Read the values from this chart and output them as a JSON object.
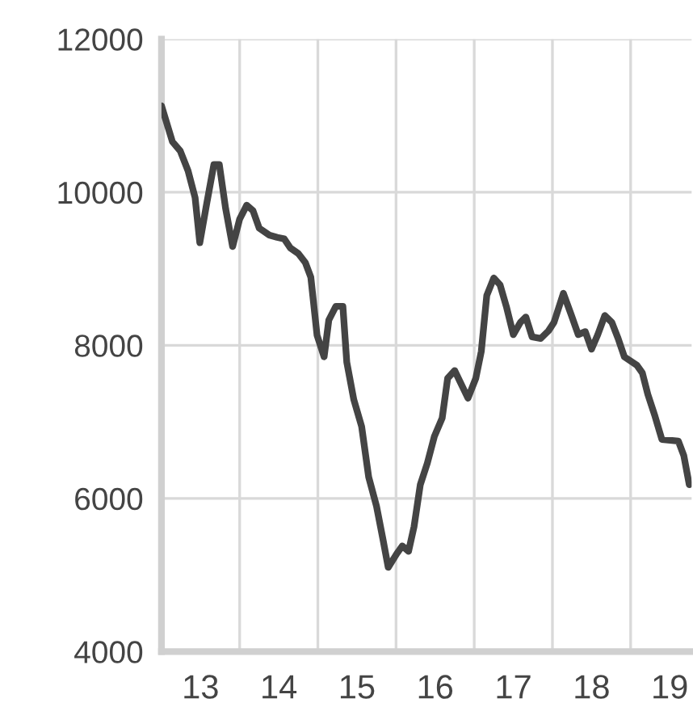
{
  "chart_data": {
    "type": "line",
    "x": [
      12.5,
      12.64,
      12.74,
      12.84,
      12.93,
      12.99,
      13.08,
      13.17,
      13.24,
      13.32,
      13.41,
      13.5,
      13.59,
      13.67,
      13.75,
      13.88,
      13.98,
      14.07,
      14.15,
      14.25,
      14.34,
      14.41,
      14.49,
      14.58,
      14.64,
      14.73,
      14.82,
      14.87,
      14.96,
      15.06,
      15.15,
      15.25,
      15.33,
      15.4,
      15.51,
      15.58,
      15.66,
      15.73,
      15.81,
      15.9,
      15.99,
      16.09,
      16.16,
      16.25,
      16.42,
      16.52,
      16.59,
      16.66,
      16.75,
      16.83,
      16.91,
      17.0,
      17.09,
      17.16,
      17.24,
      17.35,
      17.45,
      17.52,
      17.64,
      17.74,
      17.83,
      17.92,
      18.0,
      18.08,
      18.17,
      18.26,
      18.34,
      18.42,
      18.58,
      18.65,
      18.72,
      18.81,
      18.9,
      19.11,
      19.18,
      19.25
    ],
    "series": [
      {
        "color": "#444444",
        "values": [
          11130,
          10660,
          10540,
          10280,
          9930,
          9340,
          9860,
          10360,
          10360,
          9790,
          9290,
          9650,
          9830,
          9760,
          9530,
          9440,
          9410,
          9390,
          9270,
          9200,
          9080,
          8890,
          8130,
          7850,
          8330,
          8510,
          8510,
          7780,
          7290,
          6940,
          6280,
          5900,
          5480,
          5100,
          5280,
          5380,
          5310,
          5630,
          6180,
          6460,
          6810,
          7050,
          7570,
          7670,
          7310,
          7570,
          7920,
          8650,
          8880,
          8790,
          8510,
          8140,
          8300,
          8370,
          8110,
          8090,
          8190,
          8300,
          8680,
          8400,
          8140,
          8180,
          7950,
          8140,
          8390,
          8300,
          8090,
          7850,
          7740,
          7640,
          7360,
          7080,
          6770,
          6750,
          6560,
          6180
        ]
      }
    ],
    "xlim": [
      12.5,
      19.28
    ],
    "xticks": [
      {
        "value": 12.5,
        "label": null
      },
      {
        "value": 13.5,
        "label": null
      },
      {
        "value": 14.5,
        "label": null
      },
      {
        "value": 15.5,
        "label": null
      },
      {
        "value": 16.5,
        "label": null
      },
      {
        "value": 17.5,
        "label": null
      },
      {
        "value": 18.5,
        "label": null
      },
      13,
      14,
      15,
      16,
      17,
      18,
      19
    ],
    "ylim": [
      4000,
      12000
    ],
    "yticks": [
      4000,
      6000,
      8000,
      10000,
      12000
    ],
    "grid": true,
    "legend": false,
    "marker": "none",
    "line_style": "solid"
  }
}
